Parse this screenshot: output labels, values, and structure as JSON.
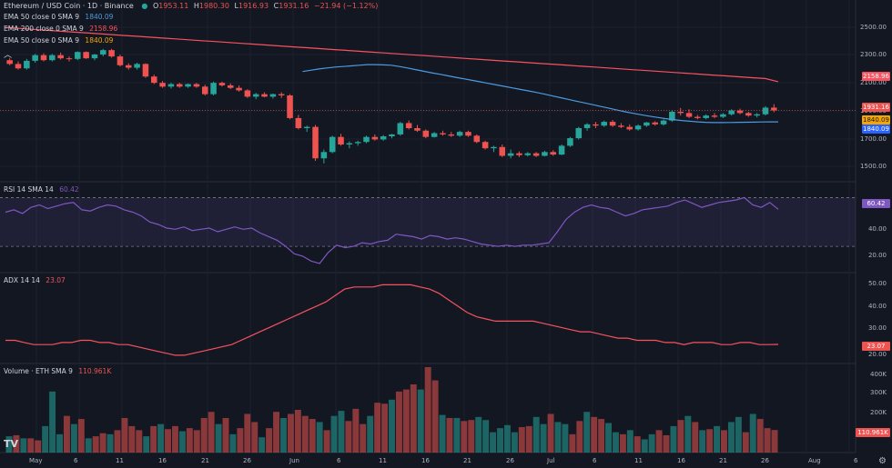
{
  "header": {
    "symbol": "Ethereum / USD Coin · 1D · Binance",
    "ohlc": {
      "o_label": "O",
      "o": "1953.11",
      "h_label": "H",
      "h": "1980.30",
      "l_label": "L",
      "l": "1916.93",
      "c_label": "C",
      "c": "1931.16",
      "chg": "−21.94 (−1.12%)"
    }
  },
  "legend": [
    {
      "label": "EMA 50 close 0 SMA 9",
      "value": "1840.09",
      "color": "#4c9be0"
    },
    {
      "label": "EMA 200 close 0 SMA 9",
      "value": "2158.96",
      "color": "#f7525f"
    },
    {
      "label": "EMA 50 close 0 SMA 9",
      "value": "1840.09",
      "color": "#f7a600"
    }
  ],
  "indicators": {
    "rsi": {
      "label": "RSI 14 SMA 14",
      "value": "60.42"
    },
    "adx": {
      "label": "ADX 14 14",
      "value": "23.07"
    },
    "volume": {
      "label": "Volume · ETH SMA 9",
      "value": "110.961K"
    }
  },
  "price_tags": {
    "ema200": "2158.96",
    "close": "1931.16",
    "ema50a": "1840.09",
    "ema50b": "1840.09"
  },
  "rsi_tag": "60.42",
  "adx_tag": "23.07",
  "vol_tag": "110.961K",
  "price_axis": [
    "2500.00",
    "2300.00",
    "2100.00",
    "1900.00",
    "1700.00",
    "1500.00"
  ],
  "rsi_axis": [
    "40.00",
    "20.00"
  ],
  "adx_axis": [
    "50.00",
    "40.00",
    "30.00",
    "20.00"
  ],
  "vol_axis": [
    "400K",
    "300K",
    "200K"
  ],
  "time_axis": [
    "May",
    "6",
    "11",
    "16",
    "21",
    "26",
    "Jun",
    "6",
    "11",
    "16",
    "21",
    "26",
    "Jul",
    "6",
    "11",
    "16",
    "21",
    "26",
    "Aug",
    "6"
  ],
  "logo": "TV",
  "colors": {
    "up": "#26a69a",
    "down": "#ef5350",
    "ema50": "#4c9be0",
    "ema200": "#f7525f",
    "rsi": "#7e57c2",
    "adx": "#f7525f"
  },
  "chart_data": [
    {
      "type": "candlestick",
      "title": "Ethereum / USD Coin · 1D · Binance",
      "ylim": [
        1400,
        2700
      ],
      "candles": [
        [
          2330,
          2345,
          2290,
          2300
        ],
        [
          2300,
          2320,
          2255,
          2265
        ],
        [
          2265,
          2340,
          2255,
          2325
        ],
        [
          2325,
          2380,
          2310,
          2370
        ],
        [
          2370,
          2385,
          2320,
          2330
        ],
        [
          2330,
          2380,
          2320,
          2370
        ],
        [
          2370,
          2390,
          2335,
          2345
        ],
        [
          2345,
          2360,
          2320,
          2340
        ],
        [
          2340,
          2400,
          2330,
          2395
        ],
        [
          2395,
          2400,
          2340,
          2345
        ],
        [
          2345,
          2380,
          2330,
          2375
        ],
        [
          2375,
          2420,
          2360,
          2410
        ],
        [
          2410,
          2420,
          2350,
          2360
        ],
        [
          2360,
          2375,
          2280,
          2290
        ],
        [
          2290,
          2305,
          2255,
          2270
        ],
        [
          2270,
          2310,
          2255,
          2300
        ],
        [
          2300,
          2305,
          2190,
          2200
        ],
        [
          2200,
          2215,
          2140,
          2150
        ],
        [
          2150,
          2165,
          2110,
          2120
        ],
        [
          2120,
          2150,
          2105,
          2140
        ],
        [
          2140,
          2150,
          2110,
          2120
        ],
        [
          2120,
          2145,
          2110,
          2140
        ],
        [
          2140,
          2150,
          2110,
          2120
        ],
        [
          2120,
          2135,
          2050,
          2060
        ],
        [
          2060,
          2160,
          2050,
          2150
        ],
        [
          2150,
          2160,
          2120,
          2130
        ],
        [
          2130,
          2145,
          2100,
          2110
        ],
        [
          2110,
          2130,
          2080,
          2090
        ],
        [
          2090,
          2100,
          2030,
          2040
        ],
        [
          2040,
          2070,
          2020,
          2060
        ],
        [
          2060,
          2075,
          2035,
          2040
        ],
        [
          2040,
          2065,
          2025,
          2060
        ],
        [
          2060,
          2075,
          2030,
          2050
        ],
        [
          2050,
          2060,
          1860,
          1870
        ],
        [
          1870,
          1895,
          1780,
          1790
        ],
        [
          1790,
          1810,
          1760,
          1800
        ],
        [
          1800,
          1815,
          1530,
          1550
        ],
        [
          1550,
          1620,
          1510,
          1600
        ],
        [
          1600,
          1730,
          1590,
          1720
        ],
        [
          1720,
          1745,
          1650,
          1660
        ],
        [
          1660,
          1685,
          1630,
          1670
        ],
        [
          1670,
          1690,
          1650,
          1680
        ],
        [
          1680,
          1730,
          1670,
          1720
        ],
        [
          1720,
          1740,
          1690,
          1700
        ],
        [
          1700,
          1735,
          1690,
          1725
        ],
        [
          1725,
          1745,
          1710,
          1740
        ],
        [
          1740,
          1840,
          1730,
          1830
        ],
        [
          1830,
          1850,
          1780,
          1790
        ],
        [
          1790,
          1815,
          1760,
          1770
        ],
        [
          1770,
          1780,
          1710,
          1720
        ],
        [
          1720,
          1760,
          1715,
          1750
        ],
        [
          1750,
          1770,
          1730,
          1740
        ],
        [
          1740,
          1760,
          1720,
          1730
        ],
        [
          1730,
          1770,
          1720,
          1760
        ],
        [
          1760,
          1770,
          1720,
          1730
        ],
        [
          1730,
          1740,
          1670,
          1680
        ],
        [
          1680,
          1690,
          1620,
          1630
        ],
        [
          1630,
          1650,
          1600,
          1640
        ],
        [
          1640,
          1660,
          1560,
          1570
        ],
        [
          1570,
          1620,
          1550,
          1590
        ],
        [
          1590,
          1605,
          1560,
          1575
        ],
        [
          1575,
          1600,
          1565,
          1590
        ],
        [
          1590,
          1600,
          1560,
          1570
        ],
        [
          1570,
          1610,
          1565,
          1600
        ],
        [
          1600,
          1615,
          1570,
          1580
        ],
        [
          1580,
          1660,
          1575,
          1650
        ],
        [
          1650,
          1720,
          1640,
          1710
        ],
        [
          1710,
          1800,
          1700,
          1790
        ],
        [
          1790,
          1830,
          1770,
          1820
        ],
        [
          1820,
          1840,
          1790,
          1810
        ],
        [
          1810,
          1850,
          1800,
          1840
        ],
        [
          1840,
          1855,
          1800,
          1810
        ],
        [
          1810,
          1830,
          1790,
          1800
        ],
        [
          1800,
          1820,
          1770,
          1780
        ],
        [
          1780,
          1820,
          1770,
          1810
        ],
        [
          1810,
          1840,
          1800,
          1835
        ],
        [
          1835,
          1845,
          1810,
          1820
        ],
        [
          1820,
          1860,
          1810,
          1850
        ],
        [
          1850,
          1930,
          1840,
          1920
        ],
        [
          1920,
          1950,
          1890,
          1910
        ],
        [
          1910,
          1940,
          1870,
          1880
        ],
        [
          1880,
          1895,
          1860,
          1870
        ],
        [
          1870,
          1900,
          1860,
          1890
        ],
        [
          1890,
          1910,
          1870,
          1880
        ],
        [
          1880,
          1910,
          1870,
          1900
        ],
        [
          1900,
          1940,
          1890,
          1930
        ],
        [
          1930,
          1945,
          1900,
          1910
        ],
        [
          1910,
          1920,
          1880,
          1890
        ],
        [
          1890,
          1910,
          1875,
          1900
        ],
        [
          1900,
          1965,
          1890,
          1953
        ],
        [
          1953.11,
          1980.3,
          1916.93,
          1931.16
        ]
      ],
      "ema50": [
        2240,
        2250,
        2260,
        2268,
        2275,
        2280,
        2285,
        2290,
        2295,
        2295,
        2293,
        2290,
        2280,
        2268,
        2255,
        2242,
        2230,
        2218,
        2206,
        2194,
        2182,
        2170,
        2158,
        2146,
        2134,
        2122,
        2110,
        2098,
        2086,
        2074,
        2060,
        2046,
        2032,
        2018,
        2004,
        1990,
        1976,
        1962,
        1948,
        1934,
        1920,
        1908,
        1896,
        1885,
        1875,
        1866,
        1858,
        1851,
        1845,
        1840,
        1836,
        1834,
        1834,
        1835,
        1836,
        1837,
        1838,
        1839,
        1840,
        1840.09
      ],
      "ema200": [
        2590,
        2583,
        2576,
        2569,
        2562,
        2555,
        2548,
        2541,
        2534,
        2527,
        2520,
        2513,
        2506,
        2499,
        2492,
        2485,
        2478,
        2471,
        2464,
        2457,
        2450,
        2443,
        2436,
        2429,
        2422,
        2415,
        2408,
        2401,
        2394,
        2387,
        2380,
        2373,
        2366,
        2359,
        2352,
        2345,
        2338,
        2331,
        2324,
        2317,
        2310,
        2303,
        2296,
        2289,
        2282,
        2275,
        2268,
        2261,
        2254,
        2247,
        2240,
        2233,
        2226,
        2219,
        2212,
        2205,
        2198,
        2191,
        2184,
        2158.96
      ]
    },
    {
      "type": "line",
      "title": "RSI 14 SMA 14",
      "ylim": [
        10,
        80
      ],
      "bands": [
        30,
        70
      ],
      "values": [
        58,
        60,
        57,
        62,
        64,
        61,
        63,
        65,
        66,
        60,
        59,
        62,
        64,
        63,
        60,
        58,
        55,
        50,
        48,
        45,
        44,
        46,
        43,
        44,
        45,
        42,
        44,
        46,
        44,
        45,
        41,
        38,
        35,
        30,
        24,
        22,
        18,
        16,
        25,
        31,
        29,
        30,
        33,
        32,
        34,
        35,
        40,
        39,
        38,
        36,
        39,
        38,
        36,
        37,
        36,
        34,
        32,
        31,
        30,
        31,
        30,
        31,
        31,
        32,
        33,
        42,
        52,
        58,
        62,
        64,
        62,
        61,
        58,
        55,
        57,
        60,
        61,
        62,
        63,
        66,
        68,
        65,
        62,
        64,
        66,
        67,
        68,
        70,
        64,
        62,
        66,
        60.42
      ]
    },
    {
      "type": "line",
      "title": "ADX 14 14",
      "ylim": [
        15,
        55
      ],
      "values": [
        25,
        25,
        24,
        23,
        23,
        23,
        24,
        24,
        25,
        25,
        24,
        24,
        23,
        23,
        22,
        21,
        20,
        19,
        18,
        18,
        19,
        20,
        21,
        22,
        23,
        25,
        27,
        29,
        31,
        33,
        35,
        37,
        39,
        41,
        43,
        46,
        49,
        50,
        50,
        50,
        51,
        51,
        51,
        51,
        50,
        49,
        47,
        44,
        41,
        38,
        36,
        35,
        34,
        34,
        34,
        34,
        34,
        33,
        32,
        31,
        30,
        29,
        29,
        28,
        27,
        26,
        26,
        25,
        25,
        25,
        24,
        24,
        23,
        24,
        24,
        24,
        23,
        23,
        24,
        24,
        23,
        23,
        23.07
      ]
    },
    {
      "type": "bar",
      "title": "Volume · ETH SMA 9",
      "ylim": [
        0,
        420
      ],
      "values": [
        80,
        85,
        70,
        70,
        60,
        130,
        300,
        90,
        180,
        140,
        165,
        70,
        80,
        95,
        90,
        110,
        170,
        130,
        110,
        80,
        130,
        140,
        115,
        130,
        105,
        120,
        110,
        170,
        200,
        140,
        170,
        90,
        120,
        190,
        150,
        75,
        120,
        200,
        170,
        190,
        210,
        180,
        165,
        150,
        110,
        180,
        205,
        155,
        215,
        140,
        180,
        245,
        240,
        260,
        300,
        310,
        335,
        310,
        420,
        355,
        185,
        170,
        170,
        155,
        160,
        175,
        160,
        100,
        120,
        135,
        100,
        125,
        130,
        175,
        140,
        190,
        150,
        140,
        90,
        155,
        200,
        175,
        165,
        145,
        100,
        90,
        110,
        80,
        65,
        90,
        110,
        85,
        130,
        160,
        180,
        150,
        110,
        115,
        130,
        110,
        150,
        175,
        100,
        190,
        165,
        120,
        110.96
      ],
      "colors": [
        "up",
        "down",
        "up",
        "down",
        "down",
        "up",
        "up",
        "up",
        "down",
        "up",
        "down",
        "up",
        "down",
        "down",
        "up",
        "down",
        "down",
        "down",
        "down",
        "up",
        "down",
        "up",
        "down",
        "down",
        "up",
        "down",
        "down",
        "down",
        "down",
        "up",
        "down",
        "up",
        "down",
        "down",
        "down",
        "up",
        "down",
        "down",
        "up",
        "down",
        "down",
        "down",
        "down",
        "up",
        "down",
        "up",
        "up",
        "down",
        "down",
        "down",
        "up",
        "down",
        "down",
        "up",
        "down",
        "down",
        "down",
        "up",
        "down",
        "down",
        "up",
        "down",
        "up",
        "down",
        "down",
        "up",
        "up",
        "up",
        "up",
        "up",
        "up",
        "down",
        "down",
        "up",
        "up",
        "down",
        "up",
        "up",
        "down",
        "down",
        "up",
        "down",
        "down",
        "up",
        "up",
        "down",
        "up",
        "down",
        "up",
        "up",
        "down",
        "down",
        "up",
        "down",
        "up",
        "down",
        "up",
        "down",
        "up",
        "down",
        "up",
        "up",
        "down",
        "up",
        "down",
        "down"
      ]
    }
  ]
}
